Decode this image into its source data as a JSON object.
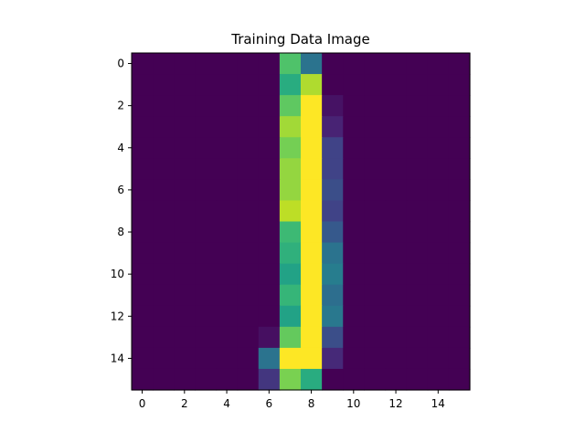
{
  "chart_data": {
    "type": "heatmap",
    "title": "Training Data Image",
    "xlabel": "",
    "ylabel": "",
    "colormap": "viridis",
    "value_range": [
      0,
      1
    ],
    "xlim": [
      -0.5,
      15.5
    ],
    "ylim": [
      15.5,
      -0.5
    ],
    "x_ticks": [
      0,
      2,
      4,
      6,
      8,
      10,
      12,
      14
    ],
    "y_ticks": [
      0,
      2,
      4,
      6,
      8,
      10,
      12,
      14
    ],
    "x_tick_labels": [
      "0",
      "2",
      "4",
      "6",
      "8",
      "10",
      "12",
      "14"
    ],
    "y_tick_labels": [
      "0",
      "2",
      "4",
      "6",
      "8",
      "10",
      "12",
      "14"
    ],
    "grid": false,
    "pixels": [
      [
        0,
        0,
        0,
        0,
        0,
        0,
        0,
        0.72,
        0.38,
        0,
        0,
        0,
        0,
        0,
        0,
        0
      ],
      [
        0,
        0,
        0,
        0,
        0,
        0,
        0,
        0.62,
        0.88,
        0,
        0,
        0,
        0,
        0,
        0,
        0
      ],
      [
        0,
        0,
        0,
        0,
        0,
        0,
        0,
        0.75,
        1.0,
        0.05,
        0,
        0,
        0,
        0,
        0,
        0
      ],
      [
        0,
        0,
        0,
        0,
        0,
        0,
        0,
        0.86,
        1.0,
        0.1,
        0,
        0,
        0,
        0,
        0,
        0
      ],
      [
        0,
        0,
        0,
        0,
        0,
        0,
        0,
        0.79,
        1.0,
        0.2,
        0,
        0,
        0,
        0,
        0,
        0
      ],
      [
        0,
        0,
        0,
        0,
        0,
        0,
        0,
        0.84,
        1.0,
        0.2,
        0,
        0,
        0,
        0,
        0,
        0
      ],
      [
        0,
        0,
        0,
        0,
        0,
        0,
        0,
        0.84,
        1.0,
        0.24,
        0,
        0,
        0,
        0,
        0,
        0
      ],
      [
        0,
        0,
        0,
        0,
        0,
        0,
        0,
        0.9,
        1.0,
        0.2,
        0,
        0,
        0,
        0,
        0,
        0
      ],
      [
        0,
        0,
        0,
        0,
        0,
        0,
        0,
        0.68,
        1.0,
        0.28,
        0,
        0,
        0,
        0,
        0,
        0
      ],
      [
        0,
        0,
        0,
        0,
        0,
        0,
        0,
        0.64,
        1.0,
        0.38,
        0,
        0,
        0,
        0,
        0,
        0
      ],
      [
        0,
        0,
        0,
        0,
        0,
        0,
        0,
        0.58,
        1.0,
        0.42,
        0,
        0,
        0,
        0,
        0,
        0
      ],
      [
        0,
        0,
        0,
        0,
        0,
        0,
        0,
        0.66,
        1.0,
        0.36,
        0,
        0,
        0,
        0,
        0,
        0
      ],
      [
        0,
        0,
        0,
        0,
        0,
        0,
        0,
        0.58,
        1.0,
        0.4,
        0,
        0,
        0,
        0,
        0,
        0
      ],
      [
        0,
        0,
        0,
        0,
        0,
        0,
        0.04,
        0.76,
        1.0,
        0.24,
        0,
        0,
        0,
        0,
        0,
        0
      ],
      [
        0,
        0,
        0,
        0,
        0,
        0,
        0.38,
        1.0,
        1.0,
        0.12,
        0,
        0,
        0,
        0,
        0,
        0
      ],
      [
        0,
        0,
        0,
        0,
        0,
        0,
        0.16,
        0.8,
        0.62,
        0,
        0,
        0,
        0,
        0,
        0,
        0
      ]
    ]
  }
}
